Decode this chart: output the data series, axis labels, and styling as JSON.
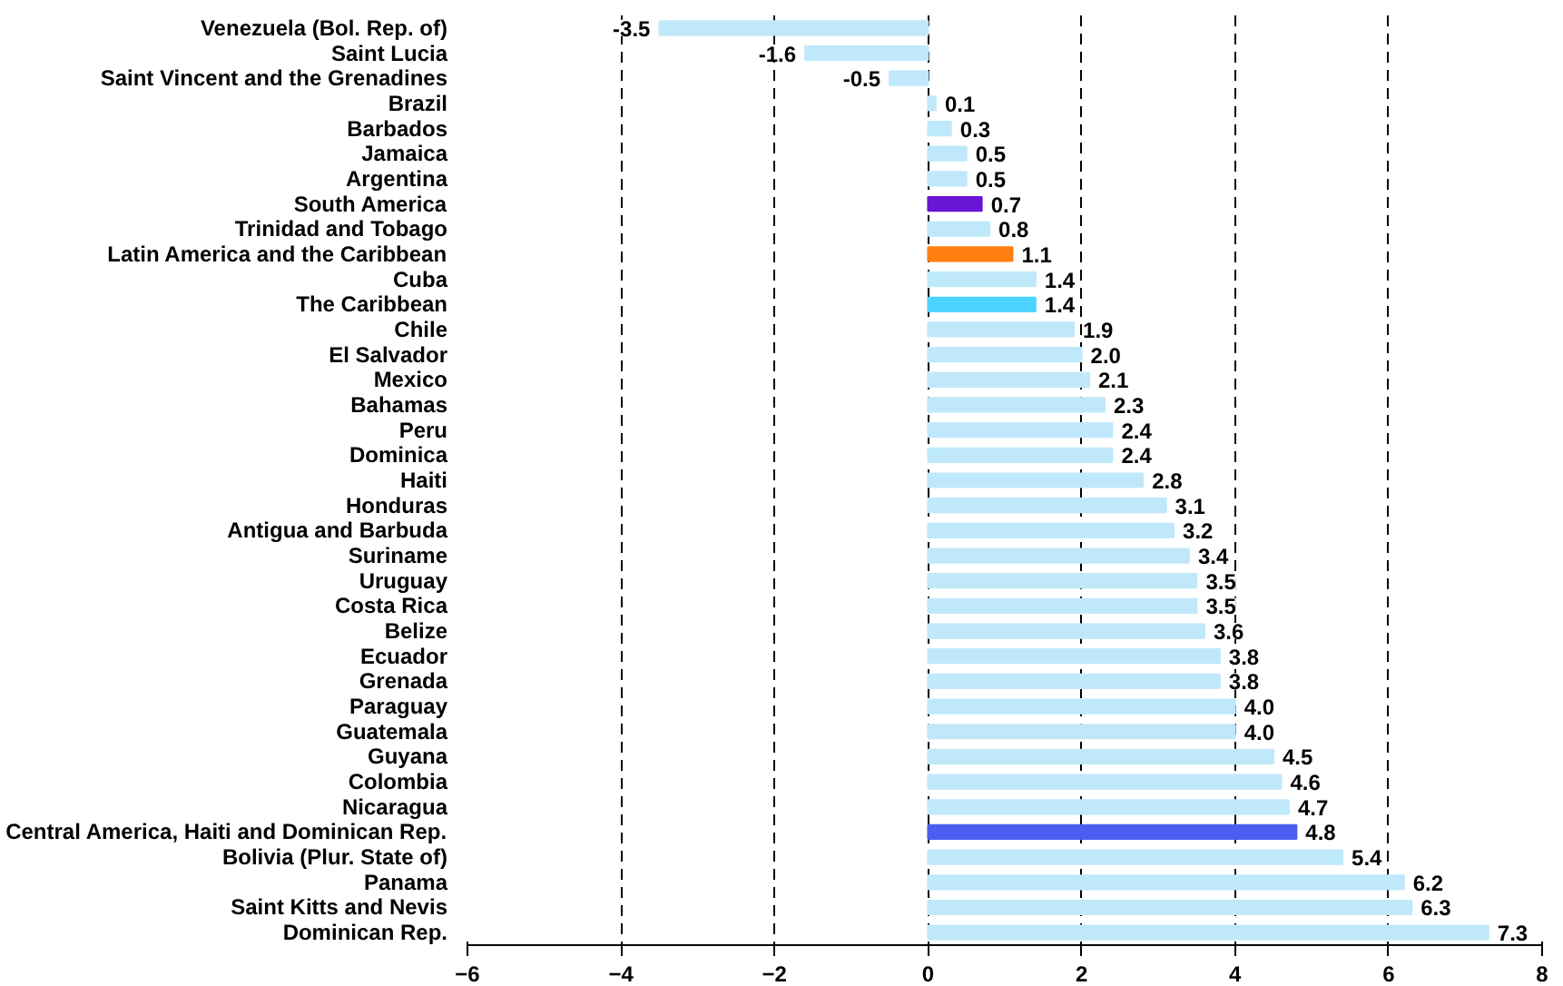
{
  "chart_data": {
    "type": "bar",
    "orientation": "horizontal",
    "categories": [
      "Venezuela (Bol. Rep. of)",
      "Saint Lucia",
      "Saint Vincent and the Grenadines",
      "Brazil",
      "Barbados",
      "Jamaica",
      "Argentina",
      "South America",
      "Trinidad and Tobago",
      "Latin America and the Caribbean",
      "Cuba",
      "The Caribbean",
      "Chile",
      "El Salvador",
      "Mexico",
      "Bahamas",
      "Peru",
      "Dominica",
      "Haiti",
      "Honduras",
      "Antigua and Barbuda",
      "Suriname",
      "Uruguay",
      "Costa Rica",
      "Belize",
      "Ecuador",
      "Grenada",
      "Paraguay",
      "Guatemala",
      "Guyana",
      "Colombia",
      "Nicaragua",
      "Central America, Haiti and Dominican Rep.",
      "Bolivia (Plur. State of)",
      "Panama",
      "Saint Kitts and Nevis",
      "Dominican Rep."
    ],
    "values": [
      -3.5,
      -1.6,
      -0.5,
      0.1,
      0.3,
      0.5,
      0.5,
      0.7,
      0.8,
      1.1,
      1.4,
      1.4,
      1.9,
      2.0,
      2.1,
      2.3,
      2.4,
      2.4,
      2.8,
      3.1,
      3.2,
      3.4,
      3.5,
      3.5,
      3.6,
      3.8,
      3.8,
      4.0,
      4.0,
      4.5,
      4.6,
      4.7,
      4.8,
      5.4,
      6.2,
      6.3,
      7.3
    ],
    "value_labels": [
      "-3.5",
      "-1.6",
      "-0.5",
      "0.1",
      "0.3",
      "0.5",
      "0.5",
      "0.7",
      "0.8",
      "1.1",
      "1.4",
      "1.4",
      "1.9",
      "2.0",
      "2.1",
      "2.3",
      "2.4",
      "2.4",
      "2.8",
      "3.1",
      "3.2",
      "3.4",
      "3.5",
      "3.5",
      "3.6",
      "3.8",
      "3.8",
      "4.0",
      "4.0",
      "4.5",
      "4.6",
      "4.7",
      "4.8",
      "5.4",
      "6.2",
      "6.3",
      "7.3"
    ],
    "colors": [
      "#bfe9fb",
      "#bfe9fb",
      "#bfe9fb",
      "#bfe9fb",
      "#bfe9fb",
      "#bfe9fb",
      "#bfe9fb",
      "#6a14d6",
      "#bfe9fb",
      "#ff7f11",
      "#bfe9fb",
      "#4dd3ff",
      "#bfe9fb",
      "#bfe9fb",
      "#bfe9fb",
      "#bfe9fb",
      "#bfe9fb",
      "#bfe9fb",
      "#bfe9fb",
      "#bfe9fb",
      "#bfe9fb",
      "#bfe9fb",
      "#bfe9fb",
      "#bfe9fb",
      "#bfe9fb",
      "#bfe9fb",
      "#bfe9fb",
      "#bfe9fb",
      "#bfe9fb",
      "#bfe9fb",
      "#bfe9fb",
      "#bfe9fb",
      "#4a5ff0",
      "#bfe9fb",
      "#bfe9fb",
      "#bfe9fb",
      "#bfe9fb"
    ],
    "xlim": [
      -6,
      8
    ],
    "xticks": [
      -6,
      -4,
      -2,
      0,
      2,
      4,
      6,
      8
    ],
    "grid": "x"
  }
}
